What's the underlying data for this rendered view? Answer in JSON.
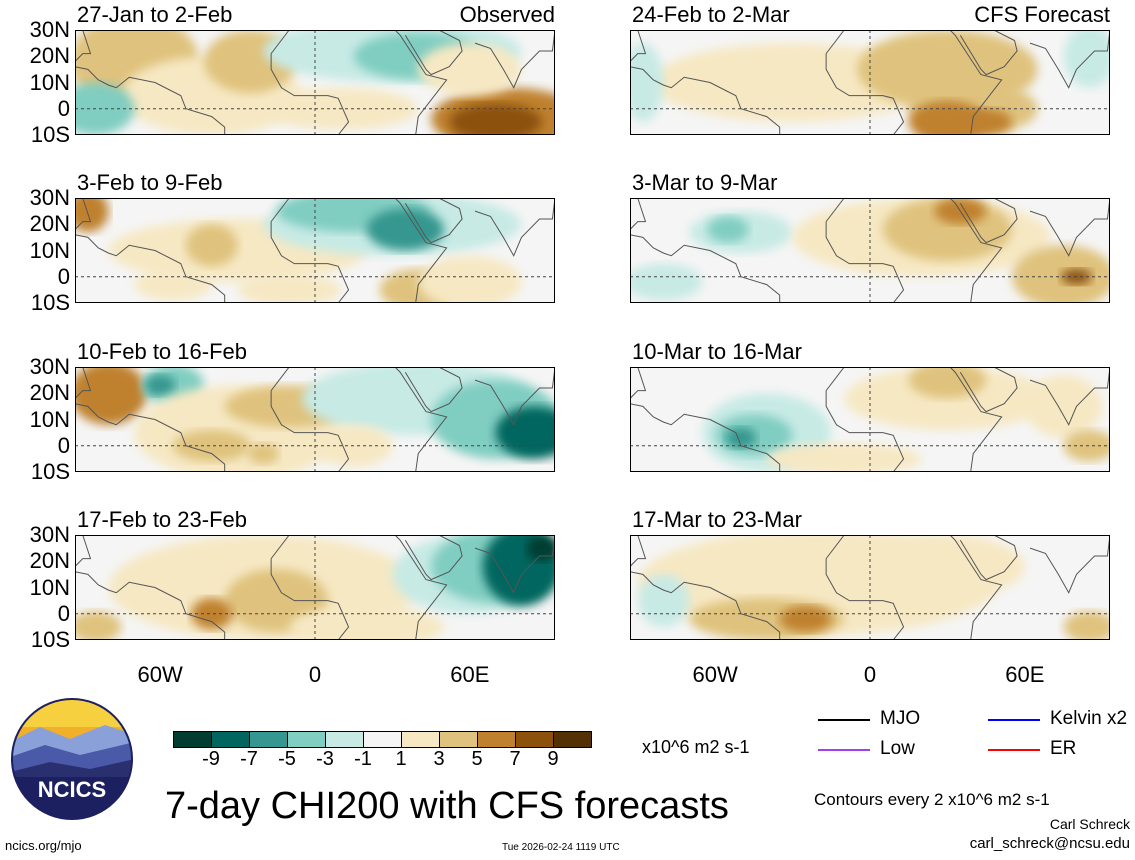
{
  "panels_left": [
    {
      "title": "27-Jan to 2-Feb",
      "tag": "Observed"
    },
    {
      "title": "3-Feb to 9-Feb"
    },
    {
      "title": "10-Feb to 16-Feb"
    },
    {
      "title": "17-Feb to 23-Feb"
    }
  ],
  "panels_right": [
    {
      "title": "24-Feb to 2-Mar",
      "tag": "CFS Forecast"
    },
    {
      "title": "3-Mar to 9-Mar"
    },
    {
      "title": "10-Mar to 16-Mar"
    },
    {
      "title": "17-Mar to 23-Mar"
    }
  ],
  "chart_data": {
    "type": "heatmap",
    "title": "7-day CHI200 with CFS forecasts",
    "ylabels": [
      "30N",
      "20N",
      "10N",
      "0",
      "10S"
    ],
    "xlabels": [
      "60W",
      "0",
      "60E"
    ],
    "colorbar": {
      "ticks": [
        "-9",
        "-7",
        "-5",
        "-3",
        "-1",
        "1",
        "3",
        "5",
        "7",
        "9"
      ],
      "colors": [
        "#003c30",
        "#01665e",
        "#35978f",
        "#80cdc1",
        "#c7eae5",
        "#f5f5f5",
        "#f6e8c3",
        "#dfc27d",
        "#bf812d",
        "#8c510a",
        "#543005"
      ],
      "units": "x10^6 m2 s-1"
    },
    "legend": [
      {
        "label": "MJO",
        "color": "#000000"
      },
      {
        "label": "Kelvin x2",
        "color": "#0000ff"
      },
      {
        "label": "Low",
        "color": "#a040f0"
      },
      {
        "label": "ER",
        "color": "#ff0000"
      }
    ],
    "contour_note": "Contours every 2 x10^6 m2 s-1"
  },
  "footer": {
    "site": "ncics.org/mjo",
    "timestamp": "Tue 2026-02-24 1119 UTC",
    "author": "Carl Schreck",
    "email": "carl_schreck@ncsu.edu",
    "logo": "NCICS"
  }
}
